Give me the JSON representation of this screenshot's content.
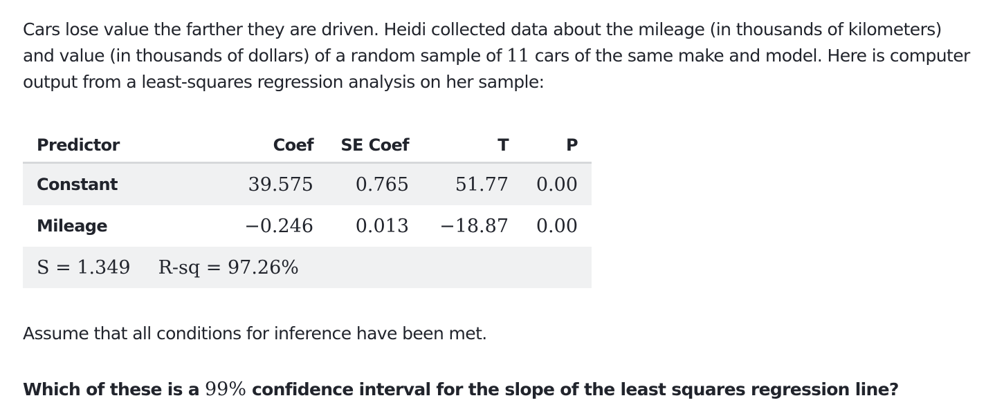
{
  "intro": {
    "part1": "Cars lose value the farther they are driven. Heidi collected data about the mileage (in thousands of kilometers) and value (in thousands of dollars) of a random sample of ",
    "sample_size": "11",
    "part2": " cars of the same make and model. Here is computer output from a least-squares regression analysis on her sample:"
  },
  "table": {
    "headers": {
      "predictor": "Predictor",
      "coef": "Coef",
      "se_coef": "SE Coef",
      "t": "T",
      "p": "P"
    },
    "rows": [
      {
        "predictor": "Constant",
        "coef": "39.575",
        "se_coef": "0.765",
        "t": "51.77",
        "p": "0.00"
      },
      {
        "predictor": "Mileage",
        "coef": "−0.246",
        "se_coef": "0.013",
        "t": "−18.87",
        "p": "0.00"
      }
    ],
    "stats": {
      "s": "S = 1.349",
      "rsq": "R-sq = 97.26%"
    }
  },
  "assumption": "Assume that all conditions for inference have been met.",
  "question": {
    "part1": "Which of these is a ",
    "confidence": "99%",
    "part2": " confidence interval for the slope of the least squares regression line?"
  }
}
